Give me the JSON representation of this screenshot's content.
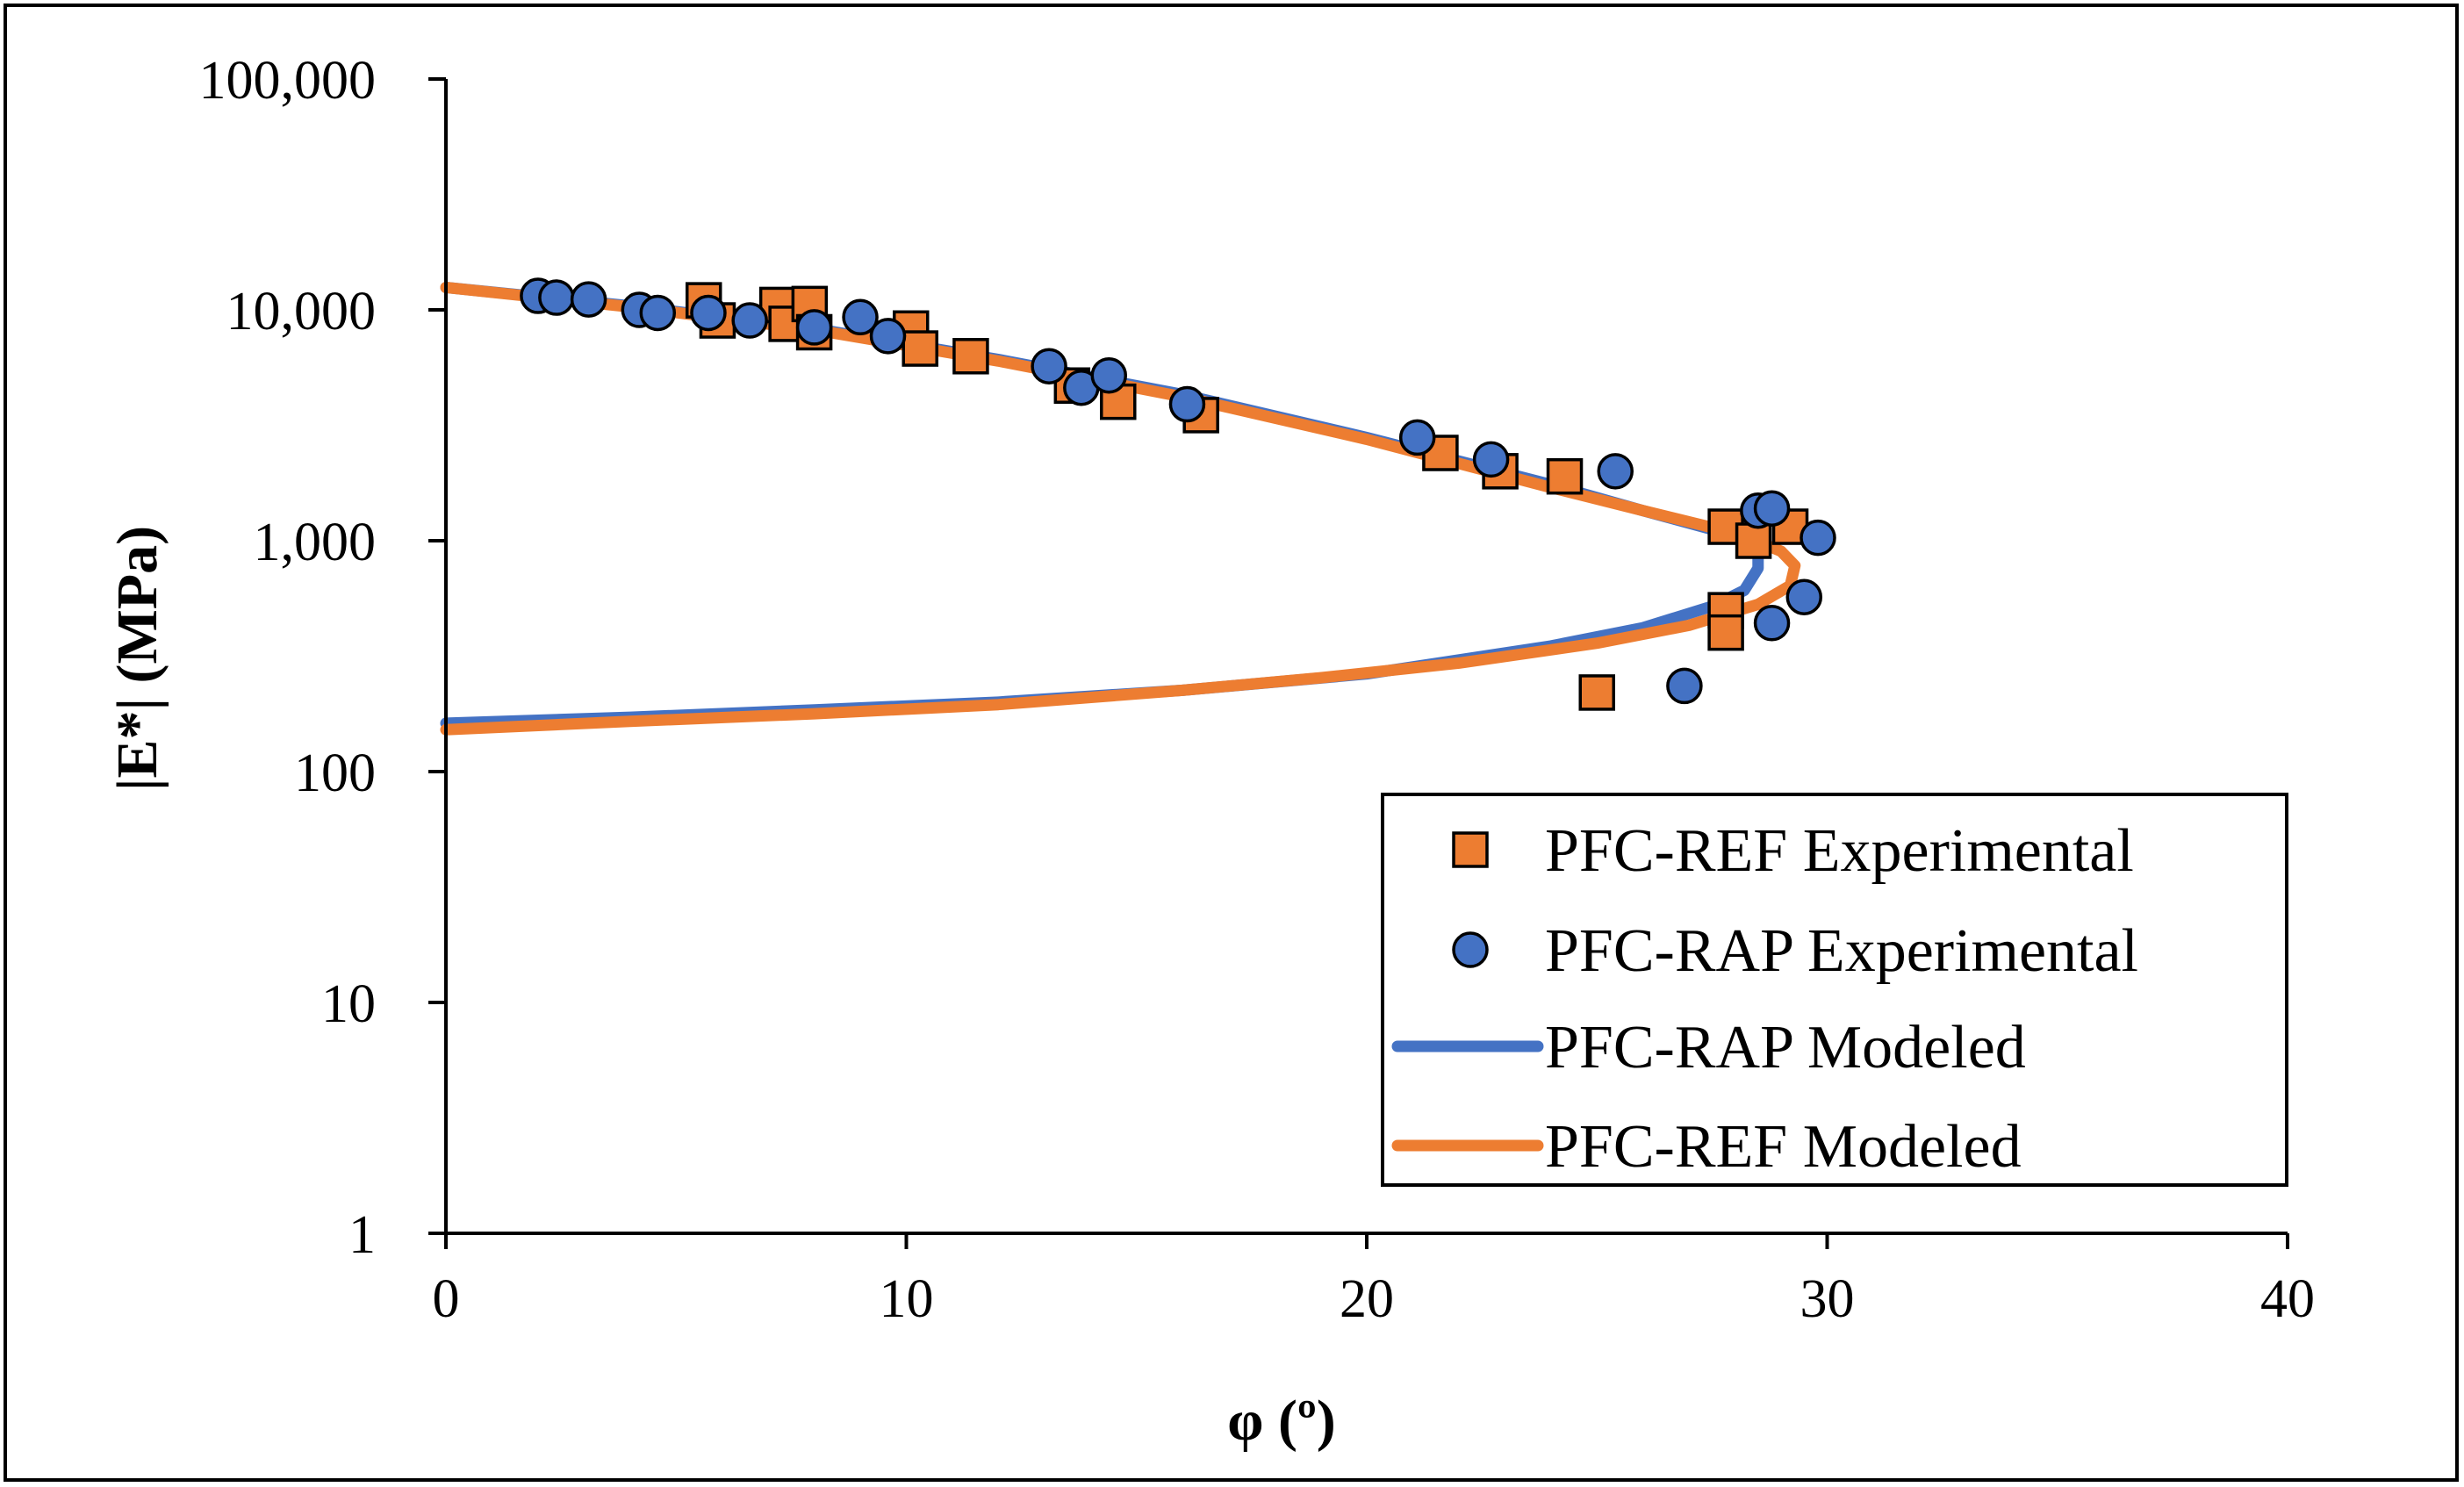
{
  "chart_data": {
    "type": "scatter",
    "title": "",
    "xlabel": "φ (º)",
    "ylabel": "|E*| (MPa)",
    "xlim": [
      0,
      40
    ],
    "ylim": [
      1,
      100000
    ],
    "yscale": "log",
    "x_ticks": [
      0,
      10,
      20,
      30,
      40
    ],
    "x_tick_labels": [
      "0",
      "10",
      "20",
      "30",
      "40"
    ],
    "y_ticks": [
      1,
      10,
      100,
      1000,
      10000,
      100000
    ],
    "y_tick_labels": [
      "1",
      "10",
      "100",
      "1,000",
      "10,000",
      "100,000"
    ],
    "legend_position": "bottom-right",
    "colors": {
      "ref": "#ED7D31",
      "rap": "#4472C4"
    },
    "series": [
      {
        "name": "PFC-REF Experimental",
        "kind": "marker",
        "marker": "square",
        "color": "#ED7D31",
        "x": [
          5.6,
          5.9,
          7.2,
          7.4,
          7.9,
          8.0,
          10.1,
          10.3,
          11.4,
          13.6,
          14.6,
          16.4,
          21.6,
          22.9,
          24.3,
          27.8,
          28.4,
          29.2,
          27.8,
          27.8,
          25.0
        ],
        "y": [
          11000,
          9000,
          10500,
          8700,
          10600,
          8000,
          8300,
          6800,
          6300,
          4700,
          4000,
          3500,
          2400,
          2000,
          1900,
          1150,
          1000,
          1150,
          500,
          400,
          220
        ]
      },
      {
        "name": "PFC-RAP Experimental",
        "kind": "marker",
        "marker": "circle",
        "color": "#4472C4",
        "x": [
          2.0,
          2.4,
          3.1,
          4.2,
          4.6,
          5.7,
          6.6,
          9.0,
          9.6,
          8.0,
          13.1,
          13.8,
          14.4,
          16.1,
          21.1,
          22.7,
          25.4,
          28.5,
          28.8,
          29.8,
          29.5,
          28.8,
          26.9
        ],
        "y": [
          11500,
          11300,
          11100,
          10000,
          9700,
          9700,
          9000,
          9300,
          7700,
          8400,
          5700,
          4600,
          5200,
          3900,
          2800,
          2250,
          2000,
          1350,
          1380,
          1030,
          570,
          440,
          235
        ]
      },
      {
        "name": "PFC-RAP Modeled",
        "kind": "line",
        "color": "#4472C4",
        "x": [
          0,
          4,
          8,
          12,
          16,
          20,
          24,
          26,
          27.5,
          28.2,
          28.5,
          28.5,
          28.2,
          27.5,
          26,
          24,
          20,
          16,
          12,
          8,
          4,
          0
        ],
        "y": [
          12500,
          10400,
          8300,
          6100,
          4300,
          2800,
          1750,
          1350,
          1120,
          1010,
          900,
          760,
          610,
          520,
          420,
          350,
          265,
          225,
          200,
          185,
          172,
          162
        ]
      },
      {
        "name": "PFC-REF Modeled",
        "kind": "line",
        "color": "#ED7D31",
        "x": [
          0,
          4,
          8,
          12,
          16,
          20,
          24,
          26,
          27.5,
          28.4,
          29.0,
          29.3,
          29.2,
          28.5,
          27,
          25,
          22,
          19,
          16,
          12,
          8,
          4,
          0
        ],
        "y": [
          12500,
          10300,
          8200,
          6000,
          4200,
          2750,
          1700,
          1350,
          1140,
          1010,
          900,
          780,
          640,
          530,
          430,
          360,
          295,
          255,
          225,
          195,
          178,
          165,
          152
        ]
      }
    ]
  }
}
